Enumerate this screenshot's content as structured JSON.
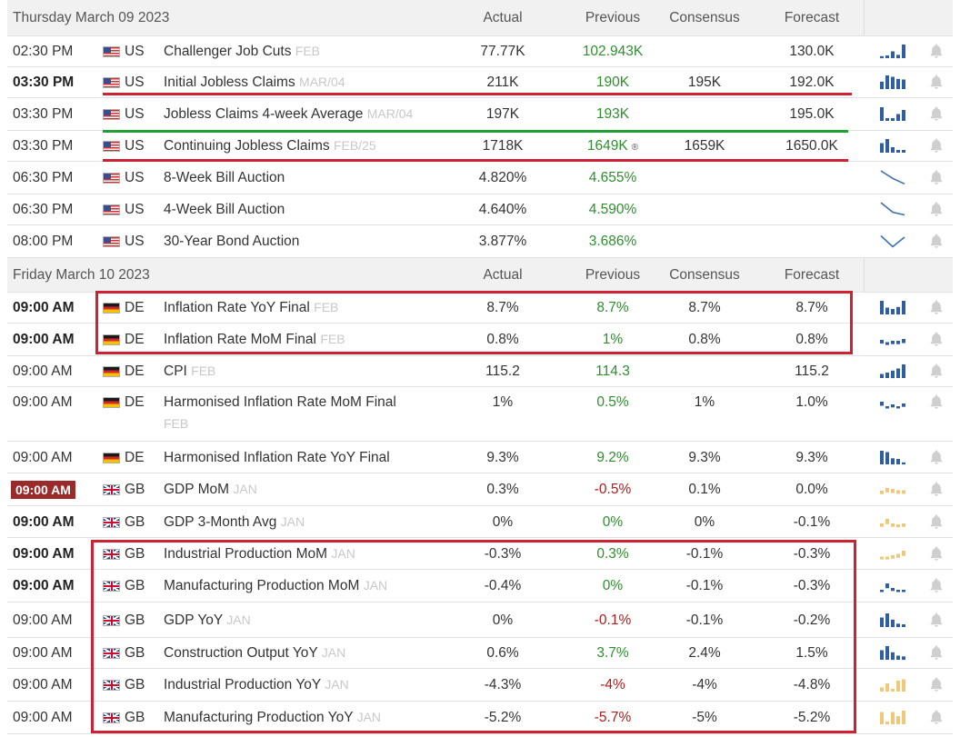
{
  "columns": {
    "actual": "Actual",
    "previous": "Previous",
    "consensus": "Consensus",
    "forecast": "Forecast"
  },
  "colors": {
    "positive": "#2f8f2f",
    "negative": "#b31b1b",
    "highlight_red": "#cc2233",
    "highlight_green": "#22a033",
    "badge": "#9b2a2a"
  },
  "days": [
    {
      "title": "Thursday March 09 2023",
      "rows": [
        {
          "time": "02:30 PM",
          "country": "US",
          "flag": "flag-us",
          "event": "Challenger Job Cuts",
          "period": "FEB",
          "actual": "77.77K",
          "previous": "102.943K",
          "prev_color": "green",
          "consensus": "",
          "forecast": "130.0K",
          "spark": [
            0.15,
            0.2,
            0.5,
            0.25,
            1
          ],
          "spark_color": "#2f5f9e",
          "spark_style": "bars",
          "h": 34
        },
        {
          "time": "03:30 PM",
          "bold": true,
          "country": "US",
          "flag": "flag-us",
          "event": "Initial Jobless Claims",
          "period": "MAR/04",
          "actual": "211K",
          "previous": "190K",
          "prev_color": "green",
          "consensus": "195K",
          "forecast": "192.0K",
          "spark": [
            0.55,
            1,
            0.9,
            0.75,
            0.7
          ],
          "spark_color": "#2f5f9e",
          "spark_style": "bars",
          "h": 34
        },
        {
          "time": "03:30 PM",
          "country": "US",
          "flag": "flag-us",
          "event": "Jobless Claims 4-week Average",
          "period": "MAR/04",
          "actual": "197K",
          "previous": "193K",
          "prev_color": "green",
          "consensus": "",
          "forecast": "195.0K",
          "spark": [
            1,
            0.2,
            0.2,
            0.5,
            0.8
          ],
          "spark_color": "#2f5f9e",
          "spark_style": "bars",
          "h": 36
        },
        {
          "time": "03:30 PM",
          "country": "US",
          "flag": "flag-us",
          "event": "Continuing Jobless Claims",
          "period": "FEB/25",
          "actual": "1718K",
          "previous": "1649K",
          "previous_suffix": "®",
          "prev_color": "green",
          "consensus": "1659K",
          "forecast": "1650.0K",
          "spark": [
            0.7,
            1,
            0.4,
            0.2,
            0.2
          ],
          "spark_color": "#2f5f9e",
          "spark_style": "bars",
          "h": 34
        },
        {
          "time": "06:30 PM",
          "country": "US",
          "flag": "flag-us",
          "event": "8-Week Bill Auction",
          "period": "",
          "actual": "4.820%",
          "previous": "4.655%",
          "prev_color": "green",
          "consensus": "",
          "forecast": "",
          "spark": [
            1,
            0.45,
            0.05
          ],
          "spark_color": "#3a6fb0",
          "spark_style": "line",
          "h": 36
        },
        {
          "time": "06:30 PM",
          "country": "US",
          "flag": "flag-us",
          "event": "4-Week Bill Auction",
          "period": "",
          "actual": "4.640%",
          "previous": "4.590%",
          "prev_color": "green",
          "consensus": "",
          "forecast": "",
          "spark": [
            1,
            0.3,
            0.1
          ],
          "spark_color": "#3a6fb0",
          "spark_style": "line",
          "h": 34
        },
        {
          "time": "08:00 PM",
          "country": "US",
          "flag": "flag-us",
          "event": "30-Year Bond Auction",
          "period": "",
          "actual": "3.877%",
          "previous": "3.686%",
          "prev_color": "green",
          "consensus": "",
          "forecast": "",
          "spark": [
            0.9,
            0.1,
            0.8
          ],
          "spark_color": "#3a6fb0",
          "spark_style": "line",
          "h": 36
        }
      ]
    },
    {
      "title": "Friday March 10 2023",
      "rows": [
        {
          "time": "09:00 AM",
          "bold": true,
          "country": "DE",
          "flag": "flag-de",
          "event": "Inflation Rate YoY Final",
          "period": "FEB",
          "actual": "8.7%",
          "previous": "8.7%",
          "prev_color": "green",
          "consensus": "8.7%",
          "forecast": "8.7%",
          "spark": [
            1,
            0.5,
            0.4,
            0.55,
            1
          ],
          "spark_color": "#2f5f9e",
          "spark_style": "bars",
          "h": 34
        },
        {
          "time": "09:00 AM",
          "bold": true,
          "country": "DE",
          "flag": "flag-de",
          "event": "Inflation Rate MoM Final",
          "period": "FEB",
          "actual": "0.8%",
          "previous": "1%",
          "prev_color": "green",
          "consensus": "0.8%",
          "forecast": "0.8%",
          "spark": [
            0.4,
            0.15,
            0.3,
            0.3,
            0.5
          ],
          "spark_color": "#2f5f9e",
          "spark_style": "dots",
          "h": 36
        },
        {
          "time": "09:00 AM",
          "country": "DE",
          "flag": "flag-de",
          "event": "CPI",
          "period": "FEB",
          "actual": "115.2",
          "previous": "114.3",
          "prev_color": "green",
          "consensus": "",
          "forecast": "115.2",
          "spark": [
            0.3,
            0.4,
            0.55,
            0.7,
            1
          ],
          "spark_color": "#2f5f9e",
          "spark_style": "bars",
          "h": 34
        },
        {
          "time": "09:00 AM",
          "country": "DE",
          "flag": "flag-de",
          "event": "Harmonised Inflation Rate MoM Final",
          "period": "FEB",
          "actual": "1%",
          "previous": "0.5%",
          "prev_color": "green",
          "consensus": "1%",
          "forecast": "1.0%",
          "spark": [
            0.5,
            0,
            0.2,
            0,
            0.3
          ],
          "spark_color": "#2f5f9e",
          "spark_style": "dots",
          "h": 60
        },
        {
          "time": "09:00 AM",
          "country": "DE",
          "flag": "flag-de",
          "event": "Harmonised Inflation Rate YoY Final",
          "period": "",
          "actual": "9.3%",
          "previous": "9.2%",
          "prev_color": "green",
          "consensus": "9.3%",
          "forecast": "9.3%",
          "spark": [
            1,
            0.9,
            0.45,
            0.4,
            0.15
          ],
          "spark_color": "#2f5f9e",
          "spark_style": "bars",
          "h": 35
        },
        {
          "time": "09:00 AM",
          "badge": true,
          "country": "GB",
          "flag": "flag-gb",
          "event": "GDP MoM",
          "period": "JAN",
          "actual": "0.3%",
          "previous": "-0.5%",
          "prev_color": "red",
          "consensus": "0.1%",
          "forecast": "0.0%",
          "spark": [
            0.3,
            0.6,
            0.5,
            0.35,
            0.35
          ],
          "spark_color": "#f0c878",
          "spark_style": "dots",
          "h": 36
        },
        {
          "time": "09:00 AM",
          "bold": true,
          "country": "GB",
          "flag": "flag-gb",
          "event": "GDP 3-Month Avg",
          "period": "JAN",
          "actual": "0%",
          "previous": "0%",
          "prev_color": "green",
          "consensus": "0%",
          "forecast": "-0.1%",
          "spark": [
            0.3,
            0.8,
            0.3,
            0.2,
            0.3
          ],
          "spark_color": "#f0c878",
          "spark_style": "dots",
          "h": 35
        },
        {
          "time": "09:00 AM",
          "bold": true,
          "country": "GB",
          "flag": "flag-gb",
          "event": "Industrial Production MoM",
          "period": "JAN",
          "actual": "-0.3%",
          "previous": "0.3%",
          "prev_color": "green",
          "consensus": "-0.1%",
          "forecast": "-0.3%",
          "spark": [
            0.15,
            0.15,
            0.3,
            0.45,
            0.8
          ],
          "spark_color": "#f0c878",
          "spark_style": "dots",
          "h": 35
        },
        {
          "time": "09:00 AM",
          "bold": true,
          "country": "GB",
          "flag": "flag-gb",
          "event": "Manufacturing Production MoM",
          "period": "JAN",
          "actual": "-0.4%",
          "previous": "0%",
          "prev_color": "green",
          "consensus": "-0.1%",
          "forecast": "-0.3%",
          "spark": [
            0,
            0.7,
            0.2,
            0,
            0
          ],
          "spark_color": "#2f5f9e",
          "spark_style": "dots",
          "h": 36
        },
        {
          "time": "09:00 AM",
          "country": "GB",
          "flag": "flag-gb",
          "event": "GDP YoY",
          "period": "JAN",
          "actual": "0%",
          "previous": "-0.1%",
          "prev_color": "red",
          "consensus": "-0.1%",
          "forecast": "-0.2%",
          "spark": [
            0.7,
            1,
            0.55,
            0.25,
            0.2
          ],
          "spark_color": "#2f5f9e",
          "spark_style": "bars",
          "h": 39
        },
        {
          "time": "09:00 AM",
          "country": "GB",
          "flag": "flag-gb",
          "event": "Construction Output YoY",
          "period": "JAN",
          "actual": "0.6%",
          "previous": "3.7%",
          "prev_color": "green",
          "consensus": "2.4%",
          "forecast": "1.5%",
          "spark": [
            0.7,
            1,
            0.55,
            0.3,
            0.25
          ],
          "spark_color": "#2f5f9e",
          "spark_style": "bars",
          "h": 34
        },
        {
          "time": "09:00 AM",
          "country": "GB",
          "flag": "flag-gb",
          "event": "Industrial Production YoY",
          "period": "JAN",
          "actual": "-4.3%",
          "previous": "-4%",
          "prev_color": "red",
          "consensus": "-4%",
          "forecast": "-4.8%",
          "spark": [
            0.3,
            0.6,
            0.2,
            0.8,
            0.9
          ],
          "spark_color": "#f0c878",
          "spark_style": "bars",
          "h": 36
        },
        {
          "time": "09:00 AM",
          "country": "GB",
          "flag": "flag-gb",
          "event": "Manufacturing Production YoY",
          "period": "JAN",
          "actual": "-5.2%",
          "previous": "-5.7%",
          "prev_color": "red",
          "consensus": "-5%",
          "forecast": "-5.2%",
          "spark": [
            0.9,
            0.2,
            0.9,
            0.6,
            1
          ],
          "spark_color": "#f0c878",
          "spark_style": "bars",
          "h": 36
        }
      ]
    }
  ]
}
